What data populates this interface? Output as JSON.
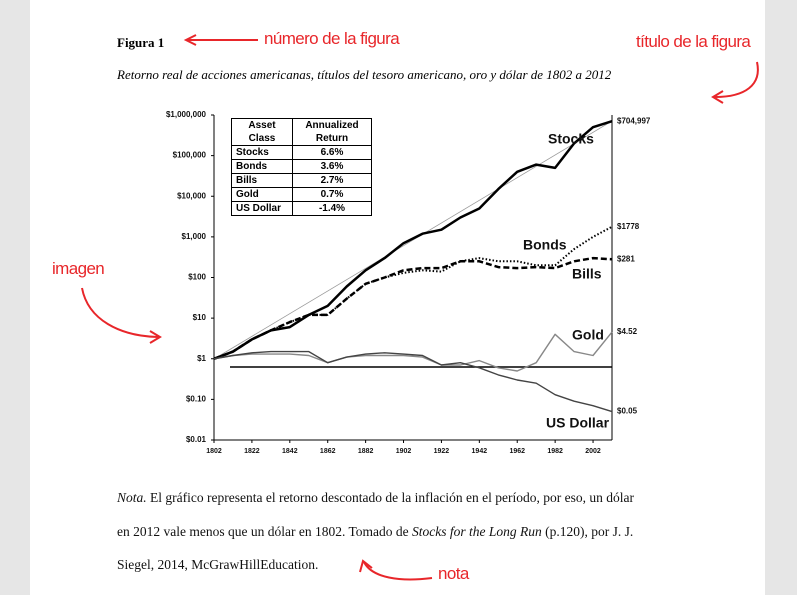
{
  "figure_number": "Figura 1",
  "figure_title": "Retorno real de acciones americanas, títulos del tesoro americano, oro y dólar de 1802 a 2012",
  "annotations": {
    "number": "número de la figura",
    "title": "título de la figura",
    "image": "imagen",
    "note": "nota"
  },
  "note": {
    "lines": [
      [
        "Nota.",
        "El gráfico representa el retorno descontado de la inflación en el período, por eso, un dólar"
      ],
      [
        "en 2012 vale menos que un dólar en 1802. Tomado de",
        "Stocks for the Long Run",
        "(p.120), por J. J."
      ],
      [
        "Siegel, 2014, McGrawHillEducation."
      ]
    ]
  },
  "chart_data": {
    "type": "line",
    "log_scale": true,
    "x": [
      1802,
      1812,
      1822,
      1832,
      1842,
      1852,
      1862,
      1872,
      1882,
      1892,
      1902,
      1912,
      1922,
      1932,
      1942,
      1952,
      1962,
      1972,
      1982,
      1992,
      2002,
      2012
    ],
    "xlim": [
      1802,
      2012
    ],
    "xticks": [
      1802,
      1822,
      1842,
      1862,
      1882,
      1902,
      1922,
      1942,
      1962,
      1982,
      2002
    ],
    "ylim": [
      0.01,
      1000000
    ],
    "yticks": [
      {
        "value": 0.01,
        "label": "$0.01"
      },
      {
        "value": 0.1,
        "label": "$0.10"
      },
      {
        "value": 1,
        "label": "$1"
      },
      {
        "value": 10,
        "label": "$10"
      },
      {
        "value": 100,
        "label": "$100"
      },
      {
        "value": 1000,
        "label": "$1,000"
      },
      {
        "value": 10000,
        "label": "$10,000"
      },
      {
        "value": 100000,
        "label": "$100,000"
      },
      {
        "value": 1000000,
        "label": "$1,000,000"
      }
    ],
    "series": [
      {
        "name": "Stocks",
        "color": "#000000",
        "style": "solid",
        "end_label": "$704,997",
        "values": [
          1,
          1.5,
          3,
          5,
          6,
          12,
          20,
          60,
          150,
          300,
          700,
          1200,
          1500,
          3000,
          5000,
          15000,
          40000,
          60000,
          50000,
          200000,
          500000,
          704997
        ]
      },
      {
        "name": "Bonds",
        "color": "#000000",
        "style": "dotted",
        "end_label": "$1778",
        "values": [
          1,
          1.5,
          3,
          5,
          8,
          12,
          12,
          30,
          70,
          100,
          130,
          150,
          140,
          250,
          300,
          250,
          250,
          200,
          200,
          500,
          1000,
          1778
        ]
      },
      {
        "name": "Bills",
        "color": "#000000",
        "style": "dashed",
        "end_label": "$281",
        "values": [
          1,
          1.5,
          3,
          5,
          8,
          12,
          12,
          30,
          70,
          100,
          150,
          170,
          170,
          250,
          250,
          180,
          170,
          180,
          170,
          250,
          300,
          281
        ]
      },
      {
        "name": "Gold",
        "color": "#888888",
        "style": "solid",
        "end_label": "$4.52",
        "values": [
          1,
          1.2,
          1.3,
          1.3,
          1.3,
          1.2,
          0.8,
          1.1,
          1.2,
          1.2,
          1.2,
          1.1,
          0.7,
          0.7,
          0.9,
          0.6,
          0.5,
          0.8,
          4,
          1.5,
          1.2,
          4.52
        ]
      },
      {
        "name": "US Dollar",
        "color": "#444444",
        "style": "solid",
        "end_label": "$0.05",
        "values": [
          1,
          1.2,
          1.4,
          1.5,
          1.5,
          1.5,
          0.8,
          1.1,
          1.3,
          1.4,
          1.3,
          1.2,
          0.7,
          0.8,
          0.6,
          0.4,
          0.3,
          0.25,
          0.13,
          0.09,
          0.07,
          0.05
        ]
      }
    ],
    "table": {
      "header": [
        "Asset Class",
        "Annualized Return"
      ],
      "rows": [
        [
          "Stocks",
          "6.6%"
        ],
        [
          "Bonds",
          "3.6%"
        ],
        [
          "Bills",
          "2.7%"
        ],
        [
          "Gold",
          "0.7%"
        ],
        [
          "US Dollar",
          "-1.4%"
        ]
      ]
    }
  }
}
